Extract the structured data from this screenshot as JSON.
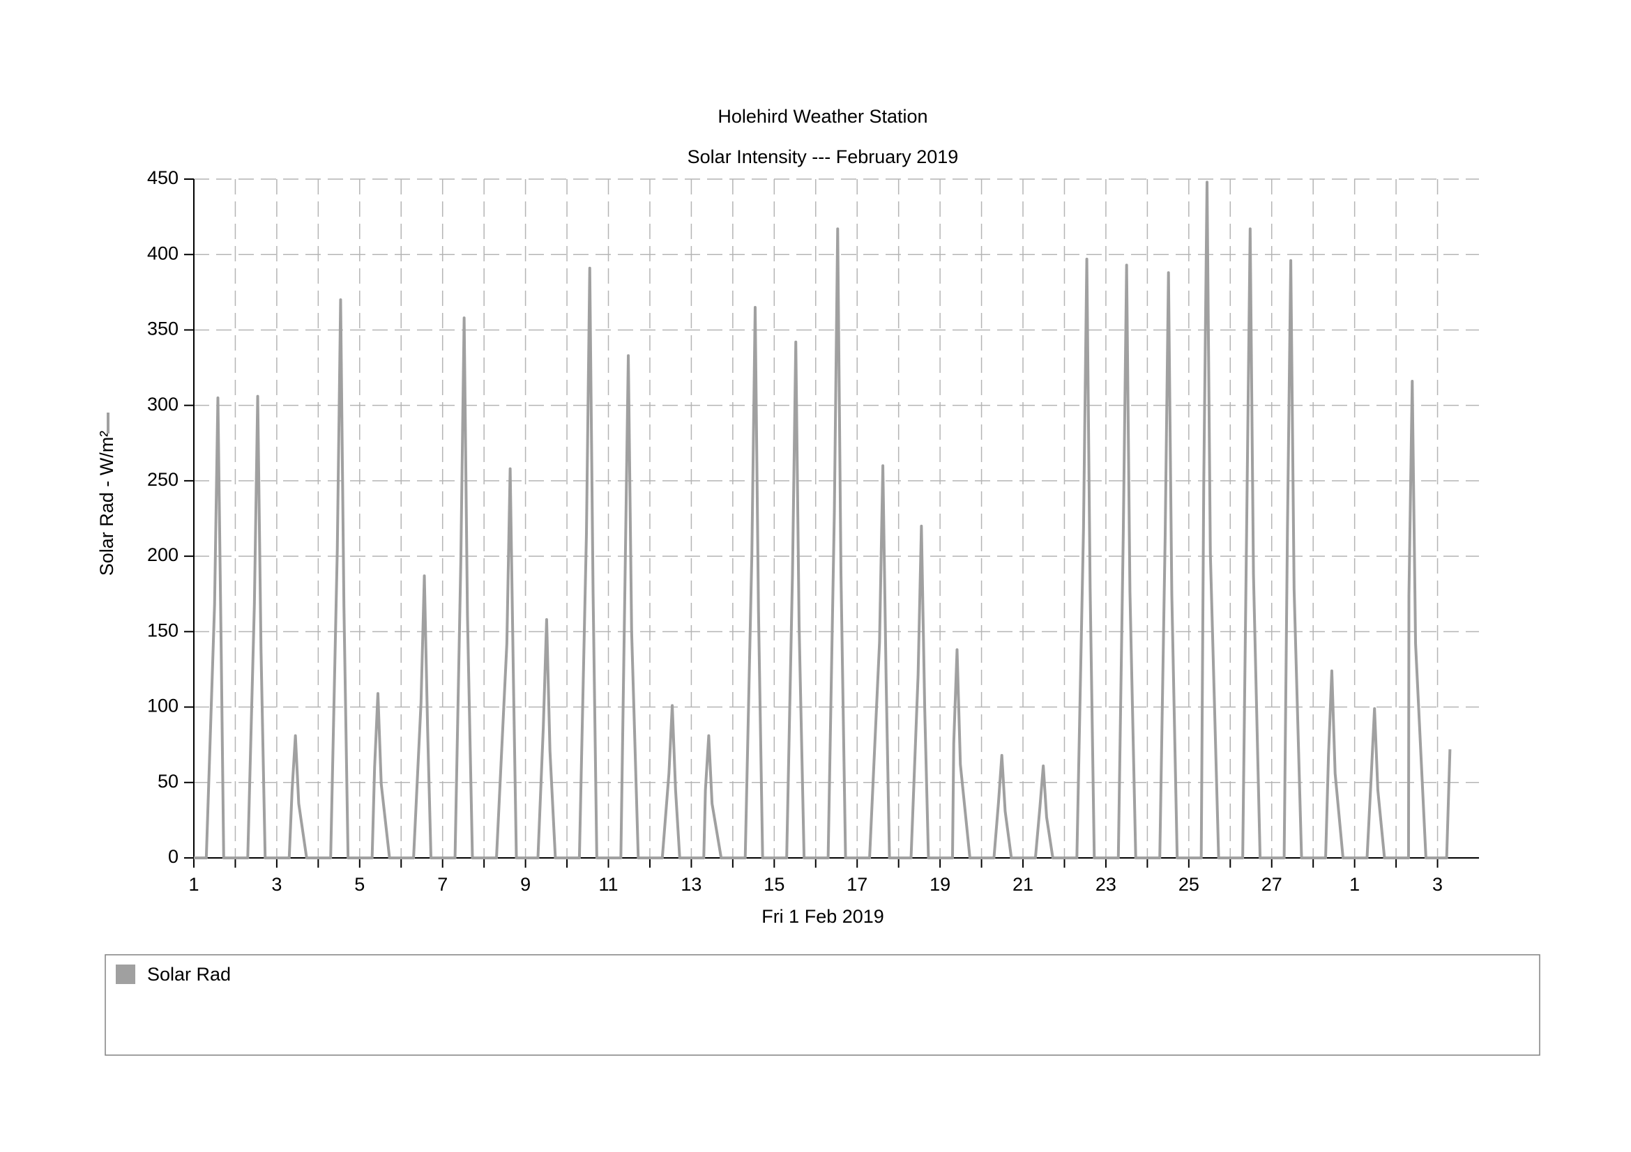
{
  "chart_data": {
    "type": "line",
    "title": "Holehird Weather Station",
    "subtitle": "Solar Intensity --- February 2019",
    "x_label": "Fri 1 Feb 2019",
    "y_label": "Solar Rad - W/m²",
    "xlim": [
      1,
      32
    ],
    "ylim": [
      0,
      450
    ],
    "yticks": [
      0,
      50,
      100,
      150,
      200,
      250,
      300,
      350,
      400,
      450
    ],
    "xticks": [
      1,
      {
        "value": 2,
        "label": null
      },
      3,
      {
        "value": 4,
        "label": null
      },
      5,
      {
        "value": 6,
        "label": null
      },
      7,
      {
        "value": 8,
        "label": null
      },
      9,
      {
        "value": 10,
        "label": null
      },
      11,
      {
        "value": 12,
        "label": null
      },
      13,
      {
        "value": 14,
        "label": null
      },
      15,
      {
        "value": 16,
        "label": null
      },
      17,
      {
        "value": 18,
        "label": null
      },
      19,
      {
        "value": 20,
        "label": null
      },
      21,
      {
        "value": 22,
        "label": null
      },
      23,
      {
        "value": 24,
        "label": null
      },
      25,
      {
        "value": 26,
        "label": null
      },
      27,
      {
        "value": 28,
        "label": null
      },
      {
        "value": 29,
        "label": "1"
      },
      {
        "value": 30,
        "label": null
      },
      {
        "value": 31,
        "label": "3"
      }
    ],
    "grid": true,
    "x": [
      1,
      1.3,
      1.5,
      1.58,
      1.66,
      1.72,
      2.3,
      2.46,
      2.54,
      2.62,
      2.72,
      3.3,
      3.37,
      3.45,
      3.53,
      3.72,
      4.3,
      4.46,
      4.54,
      4.62,
      4.72,
      5.3,
      5.36,
      5.44,
      5.52,
      5.72,
      6.3,
      6.48,
      6.56,
      6.64,
      6.72,
      7.3,
      7.44,
      7.52,
      7.6,
      7.72,
      8.3,
      8.55,
      8.63,
      8.71,
      8.78,
      9.3,
      9.43,
      9.51,
      9.59,
      9.72,
      10.3,
      10.47,
      10.55,
      10.63,
      10.72,
      11.3,
      11.4,
      11.48,
      11.56,
      11.72,
      12.3,
      12.46,
      12.54,
      12.62,
      12.72,
      13.3,
      13.34,
      13.42,
      13.5,
      13.72,
      14.3,
      14.46,
      14.54,
      14.62,
      14.72,
      15.3,
      15.44,
      15.52,
      15.6,
      15.72,
      16.3,
      16.45,
      16.53,
      16.61,
      16.72,
      17.3,
      17.54,
      17.62,
      17.7,
      17.78,
      18.3,
      18.47,
      18.55,
      18.63,
      18.72,
      19.3,
      19.33,
      19.41,
      19.49,
      19.72,
      20.3,
      20.41,
      20.49,
      20.57,
      20.72,
      21.3,
      21.41,
      21.49,
      21.57,
      21.72,
      22.3,
      22.46,
      22.54,
      22.62,
      22.72,
      23.3,
      23.42,
      23.5,
      23.58,
      23.72,
      24.3,
      24.43,
      24.51,
      24.59,
      24.72,
      25.3,
      25.36,
      25.44,
      25.52,
      25.72,
      26.3,
      26.4,
      26.48,
      26.56,
      26.72,
      27.3,
      27.38,
      27.46,
      27.54,
      27.72,
      28.3,
      28.37,
      28.45,
      28.53,
      28.72,
      29.3,
      29.4,
      29.48,
      29.56,
      29.72,
      30.3,
      30.31,
      30.39,
      30.47,
      30.72,
      31.22,
      31.3
    ],
    "series": [
      {
        "name": "Solar Rad",
        "color": "#a0a0a0",
        "values": [
          0,
          0,
          168,
          305,
          137,
          0,
          0,
          168,
          306,
          138,
          0,
          0,
          45,
          81,
          36,
          0,
          0,
          204,
          370,
          167,
          0,
          0,
          60,
          109,
          49,
          0,
          0,
          103,
          187,
          84,
          0,
          0,
          197,
          358,
          161,
          0,
          0,
          142,
          258,
          116,
          0,
          0,
          87,
          158,
          71,
          0,
          0,
          215,
          391,
          176,
          0,
          0,
          183,
          333,
          150,
          0,
          0,
          56,
          101,
          45,
          0,
          0,
          45,
          81,
          36,
          0,
          0,
          201,
          365,
          164,
          0,
          0,
          188,
          342,
          154,
          0,
          0,
          229,
          417,
          188,
          0,
          0,
          143,
          260,
          117,
          0,
          0,
          121,
          220,
          99,
          0,
          0,
          76,
          138,
          62,
          0,
          0,
          37,
          68,
          31,
          0,
          0,
          34,
          61,
          27,
          0,
          0,
          218,
          397,
          179,
          0,
          0,
          216,
          393,
          177,
          0,
          0,
          213,
          388,
          175,
          0,
          0,
          246,
          448,
          202,
          0,
          0,
          229,
          417,
          188,
          0,
          0,
          218,
          396,
          178,
          0,
          0,
          68,
          124,
          56,
          0,
          0,
          54,
          99,
          45,
          0,
          0,
          174,
          316,
          142,
          0,
          0,
          72
        ]
      }
    ]
  }
}
